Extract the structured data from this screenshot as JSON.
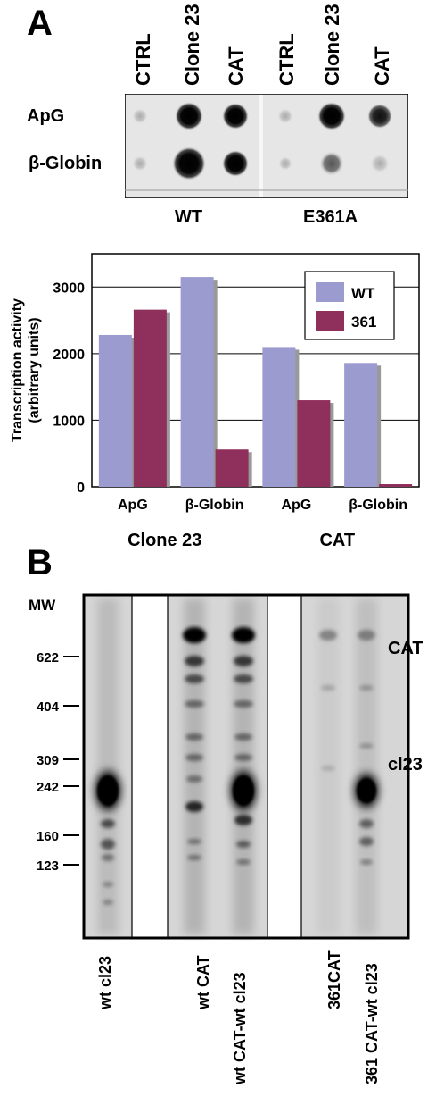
{
  "panel_a": {
    "letter": "A",
    "lane_labels": [
      "CTRL",
      "Clone 23",
      "CAT",
      "CTRL",
      "Clone 23",
      "CAT"
    ],
    "row_labels": [
      "ApG",
      "β-Globin"
    ],
    "group_labels": [
      "WT",
      "E361A"
    ]
  },
  "panel_b": {
    "letter": "B",
    "mw_title": "MW",
    "mw_markers": [
      "622",
      "404",
      "309",
      "242",
      "160",
      "123"
    ],
    "band_labels": [
      "CAT",
      "cl23"
    ],
    "lane_labels": [
      "wt cl23",
      "wt CAT",
      "wt CAT-wt cl23",
      "361CAT",
      "361 CAT-wt cl23"
    ]
  },
  "chart_data": {
    "type": "bar",
    "ylabel": "Transcription activity (arbitrary units)",
    "ylabel_lines": [
      "Transcription activity",
      "(arbitrary units)"
    ],
    "ylim": [
      0,
      3500
    ],
    "yticks": [
      "0",
      "1000",
      "2000",
      "3000"
    ],
    "grid": true,
    "legend_position": "top-right",
    "categories": [
      "ApG",
      "β-Globin",
      "ApG",
      "β-Globin"
    ],
    "groups": [
      "Clone 23",
      "CAT"
    ],
    "series": [
      {
        "name": "WT",
        "values": [
          2280,
          3150,
          2100,
          1860
        ],
        "color": "#9b9bd0"
      },
      {
        "name": "361",
        "values": [
          2660,
          560,
          1300,
          40
        ],
        "color": "#8e2f5c"
      }
    ]
  }
}
